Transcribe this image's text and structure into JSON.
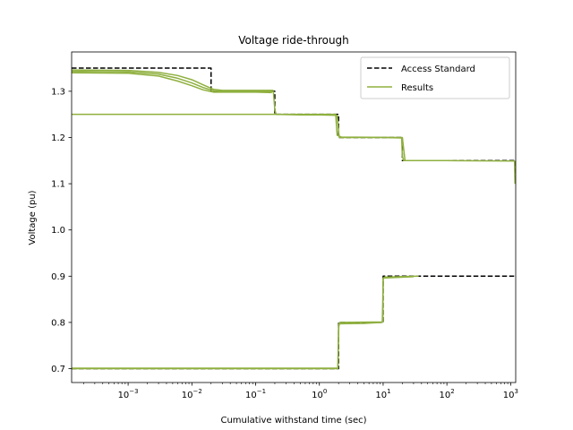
{
  "chart_data": {
    "type": "line",
    "title": "Voltage ride-through",
    "xlabel": "Cumulative withstand time (sec)",
    "ylabel": "Voltage (pu)",
    "xscale": "log",
    "xlim": [
      0.00013,
      1200
    ],
    "ylim": [
      0.67,
      1.385
    ],
    "x_ticks": [
      {
        "value": 0.001,
        "base": "10",
        "exp": "−3"
      },
      {
        "value": 0.01,
        "base": "10",
        "exp": "−2"
      },
      {
        "value": 0.1,
        "base": "10",
        "exp": "−1"
      },
      {
        "value": 1,
        "base": "10",
        "exp": "0"
      },
      {
        "value": 10,
        "base": "10",
        "exp": "1"
      },
      {
        "value": 100,
        "base": "10",
        "exp": "2"
      },
      {
        "value": 1000,
        "base": "10",
        "exp": "3"
      }
    ],
    "y_ticks": [
      "0.7",
      "0.8",
      "0.9",
      "1.0",
      "1.1",
      "1.2",
      "1.3"
    ],
    "grid": false,
    "legend": {
      "placement": "top-right",
      "entries": [
        {
          "label": "Access Standard",
          "style": "dashed",
          "color": "#000000"
        },
        {
          "label": "Results",
          "style": "solid",
          "color": "#8fb03f"
        }
      ]
    },
    "series": [
      {
        "name": "Access Standard",
        "color": "#000000",
        "style": "dashed",
        "segments": [
          {
            "x": [
              0.00013,
              0.02,
              0.02,
              0.2,
              0.2,
              2,
              2,
              20,
              20,
              1200,
              1200
            ],
            "y": [
              1.35,
              1.35,
              1.3,
              1.3,
              1.25,
              1.25,
              1.2,
              1.2,
              1.15,
              1.15,
              1.1
            ]
          },
          {
            "x": [
              0.00013,
              2,
              2,
              10,
              10,
              1200
            ],
            "y": [
              0.7,
              0.7,
              0.8,
              0.8,
              0.9,
              0.9
            ]
          }
        ]
      },
      {
        "name": "Results",
        "color": "#8fb03f",
        "style": "solid",
        "segments": [
          {
            "x": [
              0.00013,
              0.001,
              0.003,
              0.006,
              0.01,
              0.015,
              0.022,
              0.03,
              0.06,
              0.1,
              0.19,
              0.2,
              0.21,
              0.5,
              1,
              1.9,
              2.05,
              3,
              10,
              19.5,
              20,
              21,
              100,
              1150,
              1170
            ],
            "y": [
              1.343,
              1.342,
              1.337,
              1.328,
              1.318,
              1.308,
              1.301,
              1.3,
              1.3,
              1.3,
              1.299,
              1.26,
              1.25,
              1.249,
              1.249,
              1.248,
              1.2,
              1.2,
              1.2,
              1.199,
              1.16,
              1.15,
              1.15,
              1.149,
              1.1
            ]
          },
          {
            "x": [
              0.00013,
              0.001,
              0.003,
              0.006,
              0.01,
              0.015,
              0.022,
              0.03,
              0.1,
              0.18
            ],
            "y": [
              1.34,
              1.339,
              1.333,
              1.322,
              1.312,
              1.303,
              1.298,
              1.298,
              1.298,
              1.297
            ]
          },
          {
            "x": [
              0.00013,
              0.001,
              0.003,
              0.006,
              0.01,
              0.015,
              0.022,
              0.03,
              0.1,
              0.19
            ],
            "y": [
              1.346,
              1.345,
              1.341,
              1.334,
              1.325,
              1.314,
              1.304,
              1.302,
              1.302,
              1.302
            ]
          },
          {
            "x": [
              0.00013,
              0.5,
              1.8,
              1.9,
              2.2,
              20,
              22
            ],
            "y": [
              1.25,
              1.25,
              1.25,
              1.205,
              1.201,
              1.2,
              1.151
            ]
          },
          {
            "x": [
              0.00013,
              1.95,
              2,
              2.1,
              9.6,
              9.9,
              10,
              10.5,
              36
            ],
            "y": [
              0.7,
              0.7,
              0.79,
              0.8,
              0.801,
              0.802,
              0.895,
              0.898,
              0.9
            ]
          },
          {
            "x": [
              0.00013,
              1.95,
              2.02,
              5,
              9.7,
              10.05,
              30
            ],
            "y": [
              0.701,
              0.701,
              0.797,
              0.798,
              0.8,
              0.896,
              0.899
            ]
          }
        ]
      }
    ]
  }
}
